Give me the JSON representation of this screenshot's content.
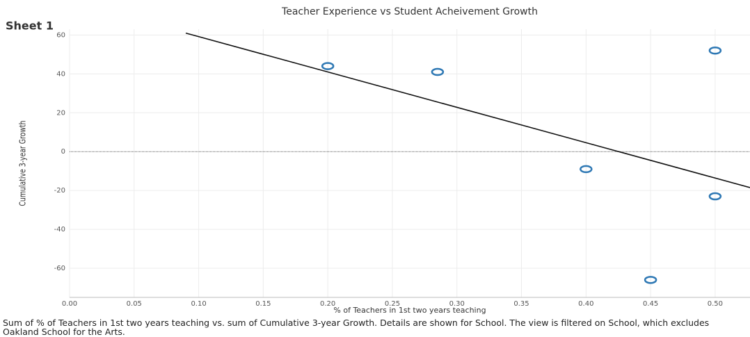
{
  "chart_data": {
    "type": "scatter",
    "sheet_title": "Sheet 1",
    "title": "Teacher Experience vs Student Acheivement Growth",
    "x_label": "% of Teachers in 1st two years teaching",
    "y_label": "Cumulative 3-year Growth",
    "caption": "Sum of % of Teachers in 1st two years teaching vs. sum of Cumulative 3-year Growth.  Details are shown for School. The view is filtered on School, which excludes Oakland School for the Arts.",
    "series": [
      {
        "name": "School",
        "color": "#2e78b4",
        "x": [
          0.2,
          0.285,
          0.4,
          0.45,
          0.5,
          0.5
        ],
        "values": [
          44,
          41,
          -9,
          -66,
          52,
          -23
        ]
      }
    ],
    "trendline": {
      "color": "#111111",
      "x": [
        0.09,
        0.527
      ],
      "values": [
        61,
        -18.5
      ]
    },
    "xlim": [
      0,
      0.527
    ],
    "ylim": [
      -75,
      63
    ],
    "xticks": [
      {
        "value": 0,
        "label": "0.00"
      },
      {
        "value": 0.05,
        "label": "0.05"
      },
      {
        "value": 0.1,
        "label": "0.10"
      },
      {
        "value": 0.15,
        "label": "0.15"
      },
      {
        "value": 0.2,
        "label": "0.20"
      },
      {
        "value": 0.25,
        "label": "0.25"
      },
      {
        "value": 0.3,
        "label": "0.30"
      },
      {
        "value": 0.35,
        "label": "0.35"
      },
      {
        "value": 0.4,
        "label": "0.40"
      },
      {
        "value": 0.45,
        "label": "0.45"
      },
      {
        "value": 0.5,
        "label": "0.50"
      }
    ],
    "yticks": [
      -60,
      -40,
      -20,
      0,
      20,
      40,
      60
    ],
    "grid": true
  }
}
